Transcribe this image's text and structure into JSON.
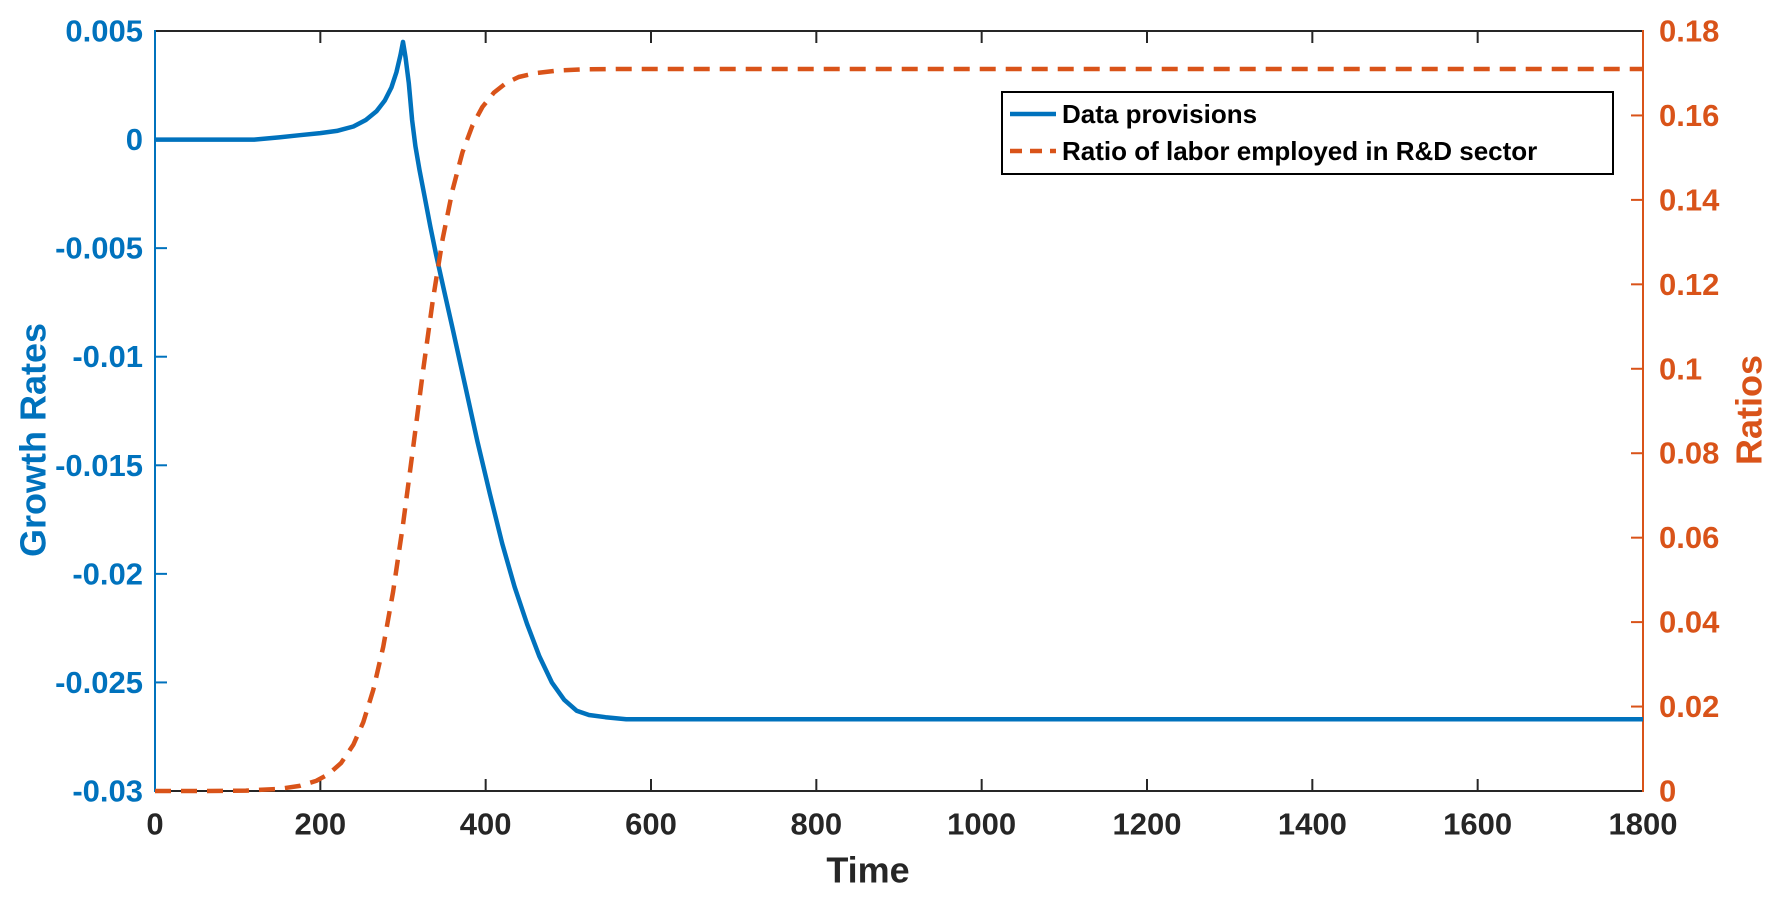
{
  "colors": {
    "blue": "#0072BD",
    "orange": "#D95319",
    "axis_dark": "#262626",
    "background": "#FFFFFF",
    "legend_border": "#000000"
  },
  "chart_data": {
    "type": "line",
    "title": "",
    "grid": false,
    "legend_position": "upper right inside",
    "x": {
      "label": "Time",
      "lim": [
        0,
        1800
      ],
      "tick_values": [
        0,
        200,
        400,
        600,
        800,
        1000,
        1200,
        1400,
        1600,
        1800
      ],
      "tick_labels": [
        "0",
        "200",
        "400",
        "600",
        "800",
        "1000",
        "1200",
        "1400",
        "1600",
        "1800"
      ]
    },
    "left_axis": {
      "label": "Growth Rates",
      "color": "#0072BD",
      "lim": [
        -0.03,
        0.005
      ],
      "tick_values": [
        0.005,
        0,
        -0.005,
        -0.01,
        -0.015,
        -0.02,
        -0.025,
        -0.03
      ],
      "tick_labels": [
        "0.005",
        "0",
        "-0.005",
        "-0.01",
        "-0.015",
        "-0.02",
        "-0.025",
        "-0.03"
      ]
    },
    "right_axis": {
      "label": "Ratios",
      "color": "#D95319",
      "lim": [
        0,
        0.18
      ],
      "tick_values": [
        0.18,
        0.16,
        0.14,
        0.12,
        0.1,
        0.08,
        0.06,
        0.04,
        0.02,
        0
      ],
      "tick_labels": [
        "0.18",
        "0.16",
        "0.14",
        "0.12",
        "0.1",
        "0.08",
        "0.06",
        "0.04",
        "0.02",
        "0"
      ]
    },
    "series": [
      {
        "name": "Data provisions",
        "axis": "left",
        "color": "#0072BD",
        "style": "solid",
        "peak": {
          "t": 300,
          "value": 0.0045
        },
        "steady_state": -0.0267,
        "points": [
          [
            0,
            0
          ],
          [
            40,
            0
          ],
          [
            80,
            0
          ],
          [
            120,
            0
          ],
          [
            150,
            0.0001
          ],
          [
            175,
            0.0002
          ],
          [
            200,
            0.0003
          ],
          [
            220,
            0.0004
          ],
          [
            240,
            0.0006
          ],
          [
            255,
            0.0009
          ],
          [
            268,
            0.0013
          ],
          [
            278,
            0.0018
          ],
          [
            286,
            0.0024
          ],
          [
            292,
            0.0031
          ],
          [
            297,
            0.0039
          ],
          [
            300,
            0.0045
          ],
          [
            303,
            0.0038
          ],
          [
            307,
            0.0026
          ],
          [
            311,
            0.0009
          ],
          [
            315,
            -0.0003
          ],
          [
            320,
            -0.0014
          ],
          [
            326,
            -0.0026
          ],
          [
            333,
            -0.004
          ],
          [
            340,
            -0.0053
          ],
          [
            350,
            -0.007
          ],
          [
            360,
            -0.0087
          ],
          [
            375,
            -0.0113
          ],
          [
            390,
            -0.0139
          ],
          [
            405,
            -0.0163
          ],
          [
            420,
            -0.0186
          ],
          [
            435,
            -0.0206
          ],
          [
            450,
            -0.0223
          ],
          [
            465,
            -0.0238
          ],
          [
            480,
            -0.025
          ],
          [
            495,
            -0.0258
          ],
          [
            510,
            -0.0263
          ],
          [
            525,
            -0.0265
          ],
          [
            545,
            -0.0266
          ],
          [
            570,
            -0.0267
          ],
          [
            620,
            -0.0267
          ],
          [
            700,
            -0.0267
          ],
          [
            800,
            -0.0267
          ],
          [
            1000,
            -0.0267
          ],
          [
            1200,
            -0.0267
          ],
          [
            1400,
            -0.0267
          ],
          [
            1600,
            -0.0267
          ],
          [
            1800,
            -0.0267
          ]
        ]
      },
      {
        "name": "Ratio of labor employed in R&D sector",
        "axis": "right",
        "color": "#D95319",
        "style": "dashed",
        "steady_state": 0.171,
        "points": [
          [
            0,
            0
          ],
          [
            60,
            0
          ],
          [
            110,
            0.0001
          ],
          [
            150,
            0.0005
          ],
          [
            175,
            0.0012
          ],
          [
            195,
            0.0024
          ],
          [
            210,
            0.004
          ],
          [
            225,
            0.0066
          ],
          [
            240,
            0.011
          ],
          [
            252,
            0.0163
          ],
          [
            264,
            0.0239
          ],
          [
            276,
            0.0341
          ],
          [
            288,
            0.0472
          ],
          [
            300,
            0.0631
          ],
          [
            312,
            0.0809
          ],
          [
            324,
            0.0991
          ],
          [
            336,
            0.1162
          ],
          [
            348,
            0.1308
          ],
          [
            360,
            0.1424
          ],
          [
            372,
            0.1513
          ],
          [
            384,
            0.1576
          ],
          [
            396,
            0.162
          ],
          [
            410,
            0.1654
          ],
          [
            425,
            0.1677
          ],
          [
            440,
            0.1691
          ],
          [
            460,
            0.17
          ],
          [
            485,
            0.1706
          ],
          [
            515,
            0.1709
          ],
          [
            560,
            0.171
          ],
          [
            620,
            0.171
          ],
          [
            700,
            0.171
          ],
          [
            800,
            0.171
          ],
          [
            1000,
            0.171
          ],
          [
            1200,
            0.171
          ],
          [
            1400,
            0.171
          ],
          [
            1600,
            0.171
          ],
          [
            1800,
            0.171
          ]
        ]
      }
    ]
  }
}
